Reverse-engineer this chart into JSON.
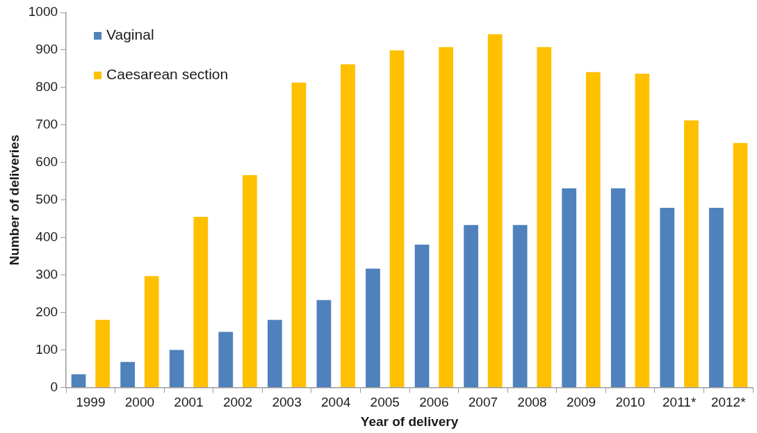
{
  "chart_data": {
    "type": "bar",
    "xlabel": "Year of delivery",
    "ylabel": "Number of deliveries",
    "categories": [
      "1999",
      "2000",
      "2001",
      "2002",
      "2003",
      "2004",
      "2005",
      "2006",
      "2007",
      "2008",
      "2009",
      "2010",
      "2011*",
      "2012*"
    ],
    "series": [
      {
        "name": "Vaginal",
        "color": "#4f81bd",
        "values": [
          35,
          68,
          100,
          148,
          180,
          233,
          317,
          381,
          433,
          433,
          531,
          531,
          479,
          479
        ]
      },
      {
        "name": "Caesarean section",
        "color": "#ffc000",
        "values": [
          180,
          297,
          455,
          566,
          813,
          862,
          899,
          908,
          942,
          908,
          841,
          837,
          712,
          652
        ]
      }
    ],
    "ylim": [
      0,
      1000
    ],
    "yticks": [
      0,
      100,
      200,
      300,
      400,
      500,
      600,
      700,
      800,
      900,
      1000
    ],
    "grid": false,
    "legend": "top left"
  }
}
